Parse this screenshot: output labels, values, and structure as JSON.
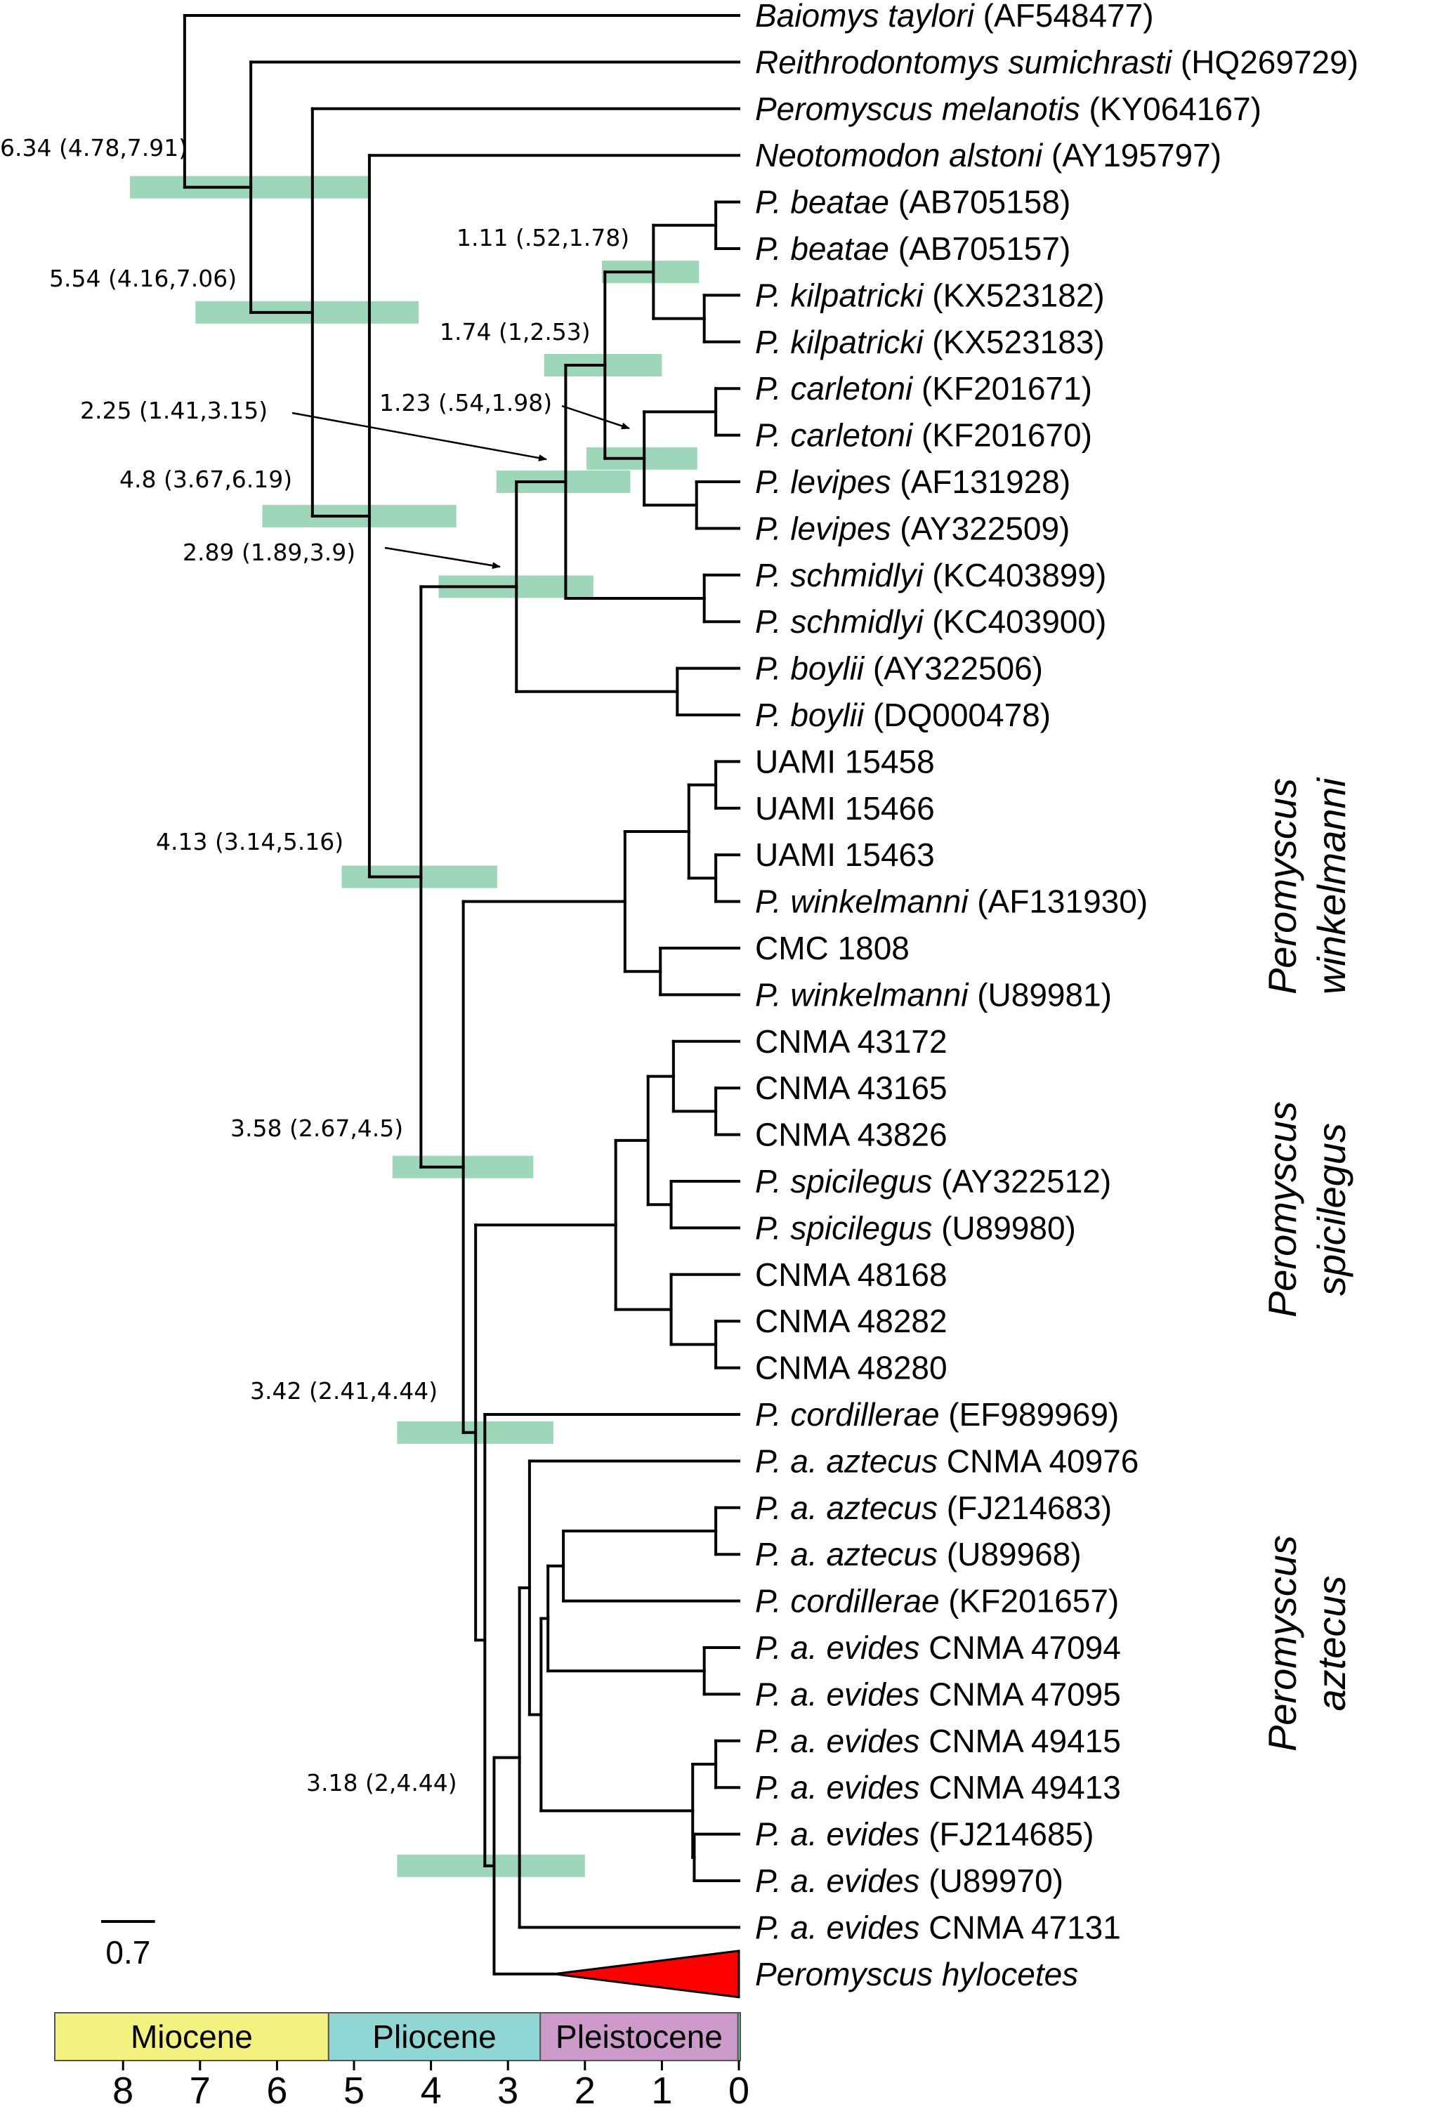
{
  "colors": {
    "hpd_bar": "#7dc8a2",
    "collapsed_clade": "#ff0000",
    "miocene": "#f3f180",
    "pliocene": "#8fd6d4",
    "pleistocene": "#cc9bc9",
    "holocene": "#7dc8a2"
  },
  "tips": [
    {
      "name": "Baiomys taylori",
      "acc": "(AF548477)",
      "italic_all": true
    },
    {
      "name": "Reithrodontomys sumichrasti",
      "acc": "(HQ269729)",
      "italic_all": true
    },
    {
      "name": "Peromyscus melanotis",
      "acc": "(KY064167)",
      "italic_all": true
    },
    {
      "name": "Neotomodon alstoni",
      "acc": "(AY195797)",
      "italic_all": true
    },
    {
      "name": "P. beatae",
      "acc": "(AB705158)",
      "italic_all": true
    },
    {
      "name": "P. beatae",
      "acc": "(AB705157)",
      "italic_all": true
    },
    {
      "name": "P. kilpatricki",
      "acc": "(KX523182)",
      "italic_all": true
    },
    {
      "name": "P. kilpatricki",
      "acc": "(KX523183)",
      "italic_all": true
    },
    {
      "name": "P. carletoni",
      "acc": "(KF201671)",
      "italic_all": true
    },
    {
      "name": "P. carletoni",
      "acc": "(KF201670)",
      "italic_all": true
    },
    {
      "name": "P. levipes",
      "acc": "(AF131928)",
      "italic_all": true
    },
    {
      "name": "P. levipes",
      "acc": "(AY322509)",
      "italic_all": true
    },
    {
      "name": "P. schmidlyi",
      "acc": "(KC403899)",
      "italic_all": true
    },
    {
      "name": "P. schmidlyi",
      "acc": "(KC403900)",
      "italic_all": true
    },
    {
      "name": "P. boylii",
      "acc": "(AY322506)",
      "italic_all": true
    },
    {
      "name": "P. boylii",
      "acc": "(DQ000478)",
      "italic_all": true
    },
    {
      "name": "",
      "acc": "UAMI 15458",
      "italic_all": false
    },
    {
      "name": "",
      "acc": "UAMI 15466",
      "italic_all": false
    },
    {
      "name": "",
      "acc": "UAMI 15463",
      "italic_all": false
    },
    {
      "name": "P. winkelmanni",
      "acc": "(AF131930)",
      "italic_all": true
    },
    {
      "name": "",
      "acc": "CMC 1808",
      "italic_all": false
    },
    {
      "name": "P. winkelmanni",
      "acc": "(U89981)",
      "italic_all": true
    },
    {
      "name": "",
      "acc": "CNMA 43172",
      "italic_all": false
    },
    {
      "name": "",
      "acc": "CNMA 43165",
      "italic_all": false
    },
    {
      "name": "",
      "acc": "CNMA 43826",
      "italic_all": false
    },
    {
      "name": "P. spicilegus",
      "acc": "(AY322512)",
      "italic_all": true
    },
    {
      "name": "P. spicilegus",
      "acc": "(U89980)",
      "italic_all": true
    },
    {
      "name": "",
      "acc": "CNMA 48168",
      "italic_all": false
    },
    {
      "name": "",
      "acc": "CNMA 48282",
      "italic_all": false
    },
    {
      "name": "",
      "acc": "CNMA 48280",
      "italic_all": false
    },
    {
      "name": "P. cordillerae",
      "acc": "(EF989969)",
      "italic_all": true
    },
    {
      "name": "P. a. aztecus",
      "acc": "CNMA 40976",
      "italic_all": false
    },
    {
      "name": "P. a. aztecus",
      "acc": "(FJ214683)",
      "italic_all": true
    },
    {
      "name": "P. a. aztecus",
      "acc": "(U89968)",
      "italic_all": true
    },
    {
      "name": "P. cordillerae",
      "acc": "(KF201657)",
      "italic_all": true
    },
    {
      "name": "P. a. evides",
      "acc": "CNMA 47094",
      "italic_all": false
    },
    {
      "name": "P. a. evides",
      "acc": "CNMA 47095",
      "italic_all": false
    },
    {
      "name": "P. a. evides",
      "acc": "CNMA 49415",
      "italic_all": false
    },
    {
      "name": "P. a. evides",
      "acc": "CNMA 49413",
      "italic_all": false
    },
    {
      "name": "P. a. evides",
      "acc": "(FJ214685)",
      "italic_all": true
    },
    {
      "name": "P. a. evides",
      "acc": "(U89970)",
      "italic_all": true
    },
    {
      "name": "P. a. evides",
      "acc": "CNMA 47131",
      "italic_all": false
    },
    {
      "name": "Peromyscus hylocetes",
      "acc": "",
      "italic_all": true
    }
  ],
  "node_labels": [
    {
      "age": 6.34,
      "text": "6.34 (4.78,7.91)",
      "hpd": [
        4.78,
        7.91
      ]
    },
    {
      "age": 5.54,
      "text": "5.54 (4.16,7.06)",
      "hpd": [
        4.16,
        7.06
      ]
    },
    {
      "age": 4.8,
      "text": "4.8 (3.67,6.19)",
      "hpd": [
        3.67,
        6.19
      ]
    },
    {
      "age": 4.13,
      "text": "4.13 (3.14,5.16)",
      "hpd": [
        3.14,
        5.16
      ]
    },
    {
      "age": 3.58,
      "text": "3.58 (2.67,4.5)",
      "hpd": [
        2.67,
        4.5
      ]
    },
    {
      "age": 3.42,
      "text": "3.42 (2.41,4.44)",
      "hpd": [
        2.41,
        4.44
      ]
    },
    {
      "age": 3.18,
      "text": "3.18 (2,4.44)",
      "hpd": [
        2,
        4.44
      ]
    },
    {
      "age": 2.89,
      "text": "2.89 (1.89,3.9)",
      "hpd": [
        1.89,
        3.9
      ]
    },
    {
      "age": 2.25,
      "text": "2.25 (1.41,3.15)",
      "hpd": [
        1.41,
        3.15
      ]
    },
    {
      "age": 1.74,
      "text": "1.74 (1,2.53)",
      "hpd": [
        1,
        2.53
      ]
    },
    {
      "age": 1.23,
      "text": "1.23 (.54,1.98)",
      "hpd": [
        0.54,
        1.98
      ]
    },
    {
      "age": 1.11,
      "text": "1.11 (.52,1.78)",
      "hpd": [
        0.52,
        1.78
      ]
    }
  ],
  "clade_labels": [
    {
      "line1": "Peromyscus",
      "line2": "winkelmanni"
    },
    {
      "line1": "Peromyscus",
      "line2": "spicilegus"
    },
    {
      "line1": "Peromyscus",
      "line2": "aztecus"
    }
  ],
  "scale_bar": {
    "label": "0.7",
    "length_ma": 0.7
  },
  "timescale": {
    "unit_ticks": [
      "8",
      "7",
      "6",
      "5",
      "4",
      "3",
      "2",
      "1",
      "0"
    ],
    "epochs": [
      {
        "name": "Miocene",
        "start": 8.9,
        "end": 5.33,
        "color_key": "miocene"
      },
      {
        "name": "Pliocene",
        "start": 5.33,
        "end": 2.58,
        "color_key": "pliocene"
      },
      {
        "name": "Pleistocene",
        "start": 2.58,
        "end": 0.0117,
        "color_key": "pleistocene"
      },
      {
        "name": "",
        "start": 0.0117,
        "end": -0.1,
        "color_key": "holocene"
      }
    ]
  }
}
